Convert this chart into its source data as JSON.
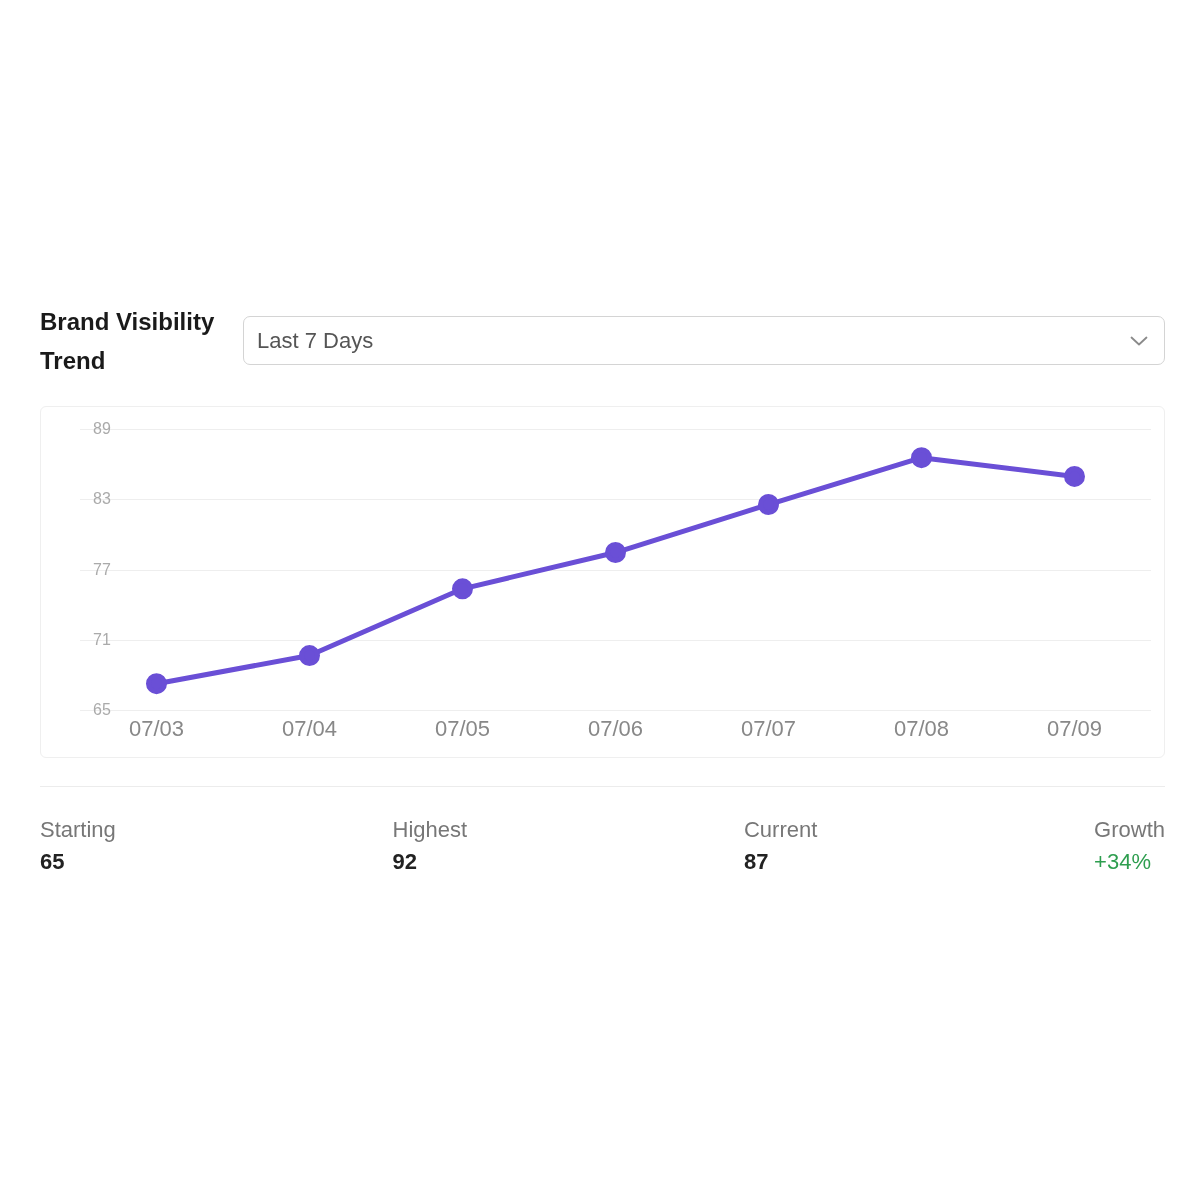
{
  "chart_data": {
    "type": "line",
    "title": "Brand Visibility Trend",
    "annotations": [
      "Last 7 Days",
      "Starting",
      "65",
      "Highest",
      "92",
      "Current",
      "87",
      "Growth",
      "+34%"
    ],
    "categories": [
      "07/03",
      "07/04",
      "07/05",
      "07/06",
      "07/07",
      "07/08",
      "07/09"
    ],
    "series": [
      {
        "color": "#6a4fd6",
        "values": [
          67.3,
          69.7,
          75.4,
          78.5,
          82.6,
          86.6,
          85
        ]
      }
    ],
    "ylim": [
      65,
      89
    ],
    "yticks": [
      65,
      71,
      77,
      83,
      89
    ],
    "grid": "y",
    "legend": false,
    "marker": "circle",
    "line_style": "solid"
  }
}
